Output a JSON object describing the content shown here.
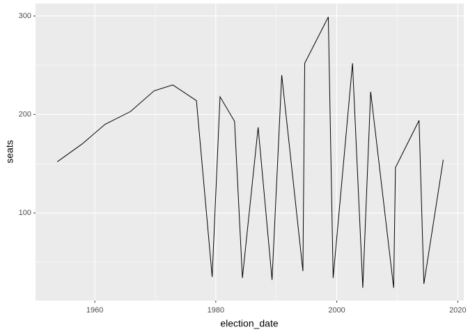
{
  "chart_data": {
    "type": "line",
    "x_label": "election_date",
    "y_label": "seats",
    "x": [
      1953.8,
      1957.9,
      1961.7,
      1965.9,
      1969.8,
      1972.9,
      1976.8,
      1979.4,
      1980.7,
      1983.1,
      1984.4,
      1987.0,
      1989.3,
      1990.9,
      1994.4,
      1994.7,
      1998.6,
      1999.4,
      2002.6,
      2004.3,
      2005.6,
      2009.4,
      2009.7,
      2013.6,
      2014.4,
      2017.6
    ],
    "series": [
      {
        "name": "seats",
        "color": "#000000",
        "values": [
          152,
          170,
          190,
          203,
          224,
          230,
          214,
          35,
          218,
          193,
          34,
          187,
          32,
          240,
          41,
          252,
          299,
          34,
          252,
          24,
          223,
          24,
          146,
          194,
          28,
          154
        ]
      }
    ],
    "xlim": [
      1950.2,
      2021.0
    ],
    "xticks": [
      1960,
      1980,
      2000,
      2020
    ],
    "ylim": [
      11,
      312.7
    ],
    "yticks": [
      100,
      200,
      300
    ],
    "x_minor_grid": [
      1970,
      1990,
      2010
    ],
    "y_minor_grid": [
      50,
      150,
      250
    ],
    "grid": true
  }
}
